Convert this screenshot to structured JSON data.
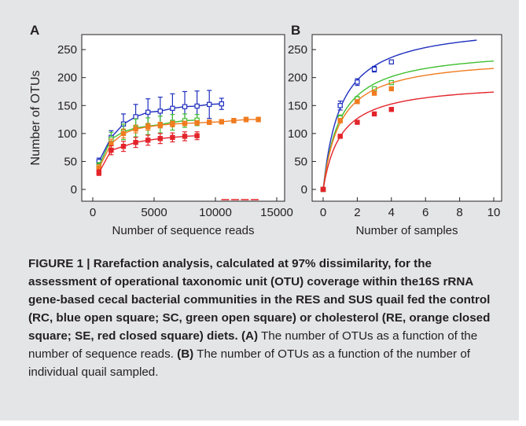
{
  "chart_data": [
    {
      "panel_label": "A",
      "type": "line",
      "xlabel": "Number of sequence reads",
      "ylabel": "Number of OTUs",
      "xlim": [
        0,
        15000
      ],
      "ylim": [
        0,
        260
      ],
      "xticks": [
        0,
        5000,
        10000,
        15000
      ],
      "yticks": [
        0,
        50,
        100,
        150,
        200,
        250
      ],
      "grid": false,
      "series": [
        {
          "color": "#1f2fbf",
          "marker": "open-square",
          "x": [
            500,
            1500,
            2500,
            3500,
            4500,
            5500,
            6500,
            7500,
            8500,
            9500,
            10500
          ],
          "y": [
            50,
            93,
            117,
            130,
            138,
            140,
            145,
            148,
            149,
            152,
            153
          ],
          "err": [
            6,
            12,
            18,
            22,
            24,
            25,
            26,
            27,
            27,
            25,
            10
          ]
        },
        {
          "color": "#3fbf2f",
          "marker": "open-square",
          "x": [
            500,
            1500,
            2500,
            3500,
            4500,
            5500,
            6500,
            7500,
            8500
          ],
          "y": [
            42,
            90,
            103,
            110,
            113,
            116,
            120,
            123,
            124
          ],
          "err": [
            6,
            12,
            14,
            16,
            15,
            15,
            14,
            12,
            10
          ]
        },
        {
          "color": "#f07c20",
          "marker": "closed-square",
          "x": [
            500,
            1500,
            2500,
            3500,
            4500,
            5500,
            6500,
            7500,
            8500,
            9500,
            10500,
            11500,
            12500,
            13500
          ],
          "y": [
            38,
            82,
            100,
            108,
            112,
            115,
            117,
            118,
            119,
            120,
            121,
            123,
            125,
            125
          ],
          "err": [
            6,
            8,
            8,
            7,
            6,
            5,
            5,
            4,
            4,
            4,
            4,
            4,
            4,
            4
          ]
        },
        {
          "color": "#e3242b",
          "marker": "closed-square",
          "x": [
            500,
            1500,
            2500,
            3500,
            4500,
            5500,
            6500,
            7500,
            8500
          ],
          "y": [
            30,
            70,
            77,
            84,
            88,
            91,
            93,
            95,
            96
          ],
          "err": [
            5,
            8,
            9,
            9,
            9,
            9,
            8,
            8,
            7
          ]
        }
      ]
    },
    {
      "panel_label": "B",
      "type": "line",
      "xlabel": "Number of samples",
      "ylabel": "",
      "xlim": [
        0,
        10
      ],
      "ylim": [
        0,
        260
      ],
      "xticks": [
        0,
        2,
        4,
        6,
        8,
        10
      ],
      "yticks": [
        0,
        50,
        100,
        150,
        200,
        250
      ],
      "grid": false,
      "series": [
        {
          "color": "#1f2fbf",
          "marker": "open-square",
          "x": [
            0,
            1,
            2,
            3,
            4
          ],
          "y": [
            0,
            150,
            192,
            215,
            228
          ],
          "err": [
            0,
            8,
            6,
            5,
            0
          ],
          "fit_max": 9,
          "fit_a": 298,
          "fit_b": 1.05
        },
        {
          "color": "#3fbf2f",
          "marker": "open-square",
          "x": [
            0,
            1,
            2,
            3,
            4
          ],
          "y": [
            0,
            128,
            162,
            180,
            191
          ],
          "err": [
            0,
            5,
            4,
            3,
            0
          ],
          "fit_max": 10,
          "fit_a": 253,
          "fit_b": 1.02
        },
        {
          "color": "#f07c20",
          "marker": "closed-square",
          "x": [
            0,
            1,
            2,
            3,
            4
          ],
          "y": [
            0,
            123,
            157,
            172,
            180
          ],
          "err": [
            0,
            4,
            3,
            3,
            0
          ],
          "fit_max": 10,
          "fit_a": 238,
          "fit_b": 1.0
        },
        {
          "color": "#e3242b",
          "marker": "closed-square",
          "x": [
            0,
            1,
            2,
            3,
            4
          ],
          "y": [
            0,
            95,
            120,
            135,
            143
          ],
          "err": [
            0,
            3,
            2,
            2,
            0
          ],
          "fit_max": 10,
          "fit_a": 192,
          "fit_b": 1.03
        }
      ]
    }
  ],
  "caption": {
    "title": "FIGURE 1 | Rarefaction analysis, calculated at 97% dissimilarity, for the assessment of operational taxonomic unit (OTU) coverage within the16S rRNA gene-based cecal bacterial communities in the RES and SUS quail fed the control (RC, blue open square; SC, green open square) or cholesterol (RE, orange closed square; SE, red closed square) diets.",
    "label_a": "(A)",
    "text_a": " The number of OTUs as a function of the number of sequence reads.",
    "label_b": "(B)",
    "text_b": " The number of OTUs as a function of the number of individual quail sampled."
  }
}
